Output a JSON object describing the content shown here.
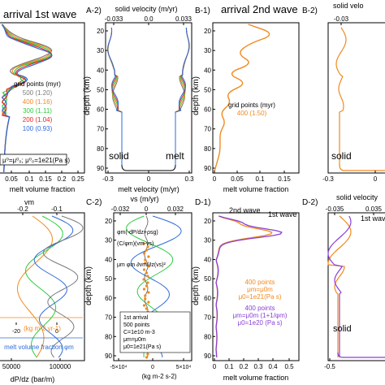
{
  "colors": {
    "c500": "#7a7a7a",
    "c400": "#f08a1e",
    "c300": "#2ecc40",
    "c200": "#e8271e",
    "c100": "#2e6bdc",
    "purple": "#8a3fd6",
    "red": "#e8271e"
  },
  "panels": {
    "A1": {
      "title": "arrival 1st wave",
      "xlabel": "melt volume fraction",
      "xticks": [
        "0.05",
        "0.1",
        "0.15",
        "0.2",
        "0.25"
      ],
      "legend_title": "grid points (myr)",
      "legend": [
        {
          "label": "500 (1.20)",
          "color": "#7a7a7a"
        },
        {
          "label": "400 (1.16)",
          "color": "#f08a1e"
        },
        {
          "label": "300 (1.11)",
          "color": "#2ecc40"
        },
        {
          "label": "200 (1.04)",
          "color": "#e8271e"
        },
        {
          "label": "100 (0.93)",
          "color": "#2e6bdc"
        }
      ],
      "formula": "μ⁰=μ⁰₀; μ⁰₀=1e21(Pa s)"
    },
    "A2": {
      "label": "A-2)",
      "top_axis_label": "solid velocity (m/yr)",
      "top_ticks": [
        "-0.033",
        "0.0",
        "0.033"
      ],
      "xlabel": "melt velocity (m/yr)",
      "xticks": [
        "-0.3",
        "0",
        "0.3"
      ],
      "ylabel": "depth (km)",
      "yticks": [
        "20",
        "30",
        "40",
        "50",
        "60",
        "70",
        "80",
        "90"
      ],
      "solid_label": "solid",
      "melt_label": "melt"
    },
    "B1": {
      "label": "B-1)",
      "title": "arrival 2nd wave",
      "xlabel": "melt volume fraction",
      "xticks": [
        "0",
        "0.05",
        "0.1",
        "0.15"
      ],
      "ylabel": "depth (km)",
      "yticks": [
        "20",
        "30",
        "40",
        "50",
        "60",
        "70",
        "80",
        "90"
      ],
      "legend_title": "grid points (myr)",
      "legend_entry": "400 (1.50)"
    },
    "B2": {
      "label": "B-2)",
      "top_axis_label": "solid velo",
      "top_ticks": [
        "-0.03"
      ],
      "xticks": [
        "-0.3",
        "0"
      ],
      "solid_label": "solid"
    },
    "C1": {
      "top_axis_label": "vm",
      "top_ticks": [
        "-0.2",
        "-0.1"
      ],
      "x2label": "(kg m-2 yr-1)",
      "x2ticks": [
        "-20",
        "0"
      ],
      "xlabel": "melt volume fraction φm",
      "xticks": [
        "50000",
        "100000"
      ],
      "xlabel2": "dP/dz (bar/m)"
    },
    "C2": {
      "label": "C-2)",
      "top_axis_label": "vs (m/yr)",
      "top_ticks": [
        "-0.032",
        "0",
        "0.032"
      ],
      "ylabel": "depth (km)",
      "yticks": [
        "20",
        "30",
        "40",
        "50",
        "60",
        "70",
        "80",
        "90"
      ],
      "xlabel": "(kg m-2 s-2)",
      "xticks": [
        "-5×10⁴",
        "0",
        "5×10⁴"
      ],
      "annotations": [
        "φm(-dP/dz+ρsg)",
        "(C/φm)(vm-vs)",
        "μm φm ∂vm/∂z(vs)²"
      ],
      "info": [
        "1st arrival",
        "500 points",
        "C=1e10 m-3",
        "μm=μ0m",
        "μ0=1e21(Pa s)"
      ]
    },
    "D1": {
      "label": "D-1)",
      "ylabel": "depth (km)",
      "yticks": [
        "20",
        "30",
        "40",
        "50",
        "60",
        "70",
        "80",
        "90"
      ],
      "xlabel": "melt volume fraction",
      "xticks": [
        "0",
        "0.1",
        "0.2",
        "0.3",
        "0.4",
        "0.5"
      ],
      "wave1": "1st wave",
      "wave2": "2nd wave",
      "legend_orange": [
        "400 points",
        "μm=μ0m",
        "μ0=1e21(Pa s)"
      ],
      "legend_purple": [
        "400 points",
        "μm=μ0m (1+1/φm)",
        "μ0=1e20 (Pa s)"
      ]
    },
    "D2": {
      "label": "D-2)",
      "top_axis_label": "solid velocity",
      "top_ticks": [
        "-0.035",
        "0.035"
      ],
      "xticks": [
        "-0.5"
      ],
      "wave1": "1st wave",
      "solid_label": "solid"
    }
  },
  "chart_data": [
    {
      "type": "line",
      "panel": "A-1",
      "xlabel": "melt volume fraction",
      "ylabel": "",
      "title": "arrival 1st wave",
      "xlim": [
        0,
        0.25
      ],
      "ylim": [
        90,
        15
      ],
      "series": [
        {
          "name": "500 (1.20)",
          "color": "#7a7a7a"
        },
        {
          "name": "400 (1.16)",
          "color": "#f08a1e"
        },
        {
          "name": "300 (1.11)",
          "color": "#2ecc40"
        },
        {
          "name": "200 (1.04)",
          "color": "#e8271e"
        },
        {
          "name": "100 (0.93)",
          "color": "#2e6bdc"
        }
      ],
      "y": [
        15,
        20,
        25,
        30,
        35,
        40,
        45,
        50,
        55,
        60,
        65,
        70,
        75,
        80,
        85,
        90
      ]
    },
    {
      "type": "line",
      "panel": "A-2",
      "xlabel": "melt velocity (m/yr)",
      "ylabel": "depth (km)",
      "xlim": [
        -0.3,
        0.3
      ],
      "ylim": [
        90,
        15
      ]
    },
    {
      "type": "line",
      "panel": "B-1",
      "xlabel": "melt volume fraction",
      "ylabel": "depth (km)",
      "title": "arrival 2nd wave",
      "xlim": [
        0,
        0.15
      ],
      "ylim": [
        90,
        15
      ],
      "series": [
        {
          "name": "400 (1.50)",
          "color": "#f08a1e"
        }
      ],
      "y": [
        15,
        20,
        25,
        30,
        35,
        40,
        45,
        50,
        55,
        60,
        65,
        70,
        75,
        80,
        85,
        90
      ],
      "values": [
        0.06,
        0.11,
        0.06,
        0.04,
        0.07,
        0.02,
        0.06,
        0.02,
        0.03,
        0.01,
        0.02,
        0.01,
        0.01,
        0.01,
        0.005,
        0.0
      ]
    },
    {
      "type": "line",
      "panel": "D-1",
      "xlabel": "melt volume fraction",
      "ylabel": "depth (km)",
      "xlim": [
        0,
        0.55
      ],
      "ylim": [
        90,
        15
      ]
    }
  ]
}
